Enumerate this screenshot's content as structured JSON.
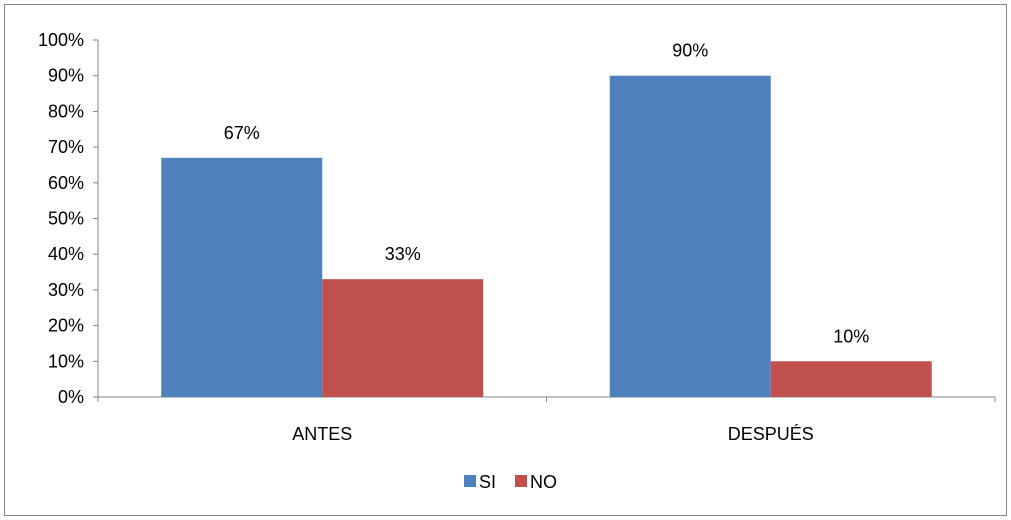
{
  "chart_data": {
    "type": "bar",
    "categories": [
      "ANTES",
      "DESPUÉS"
    ],
    "series": [
      {
        "name": "SI",
        "values": [
          67,
          90
        ],
        "color": "#4F81BD"
      },
      {
        "name": "NO",
        "values": [
          33,
          10
        ],
        "color": "#C0504D"
      }
    ],
    "data_labels": [
      [
        "67%",
        "90%"
      ],
      [
        "33%",
        "10%"
      ]
    ],
    "y_ticks": [
      "0%",
      "10%",
      "20%",
      "30%",
      "40%",
      "50%",
      "60%",
      "70%",
      "80%",
      "90%",
      "100%"
    ],
    "ylim": [
      0,
      100
    ],
    "grid": false,
    "legend_position": "bottom"
  }
}
